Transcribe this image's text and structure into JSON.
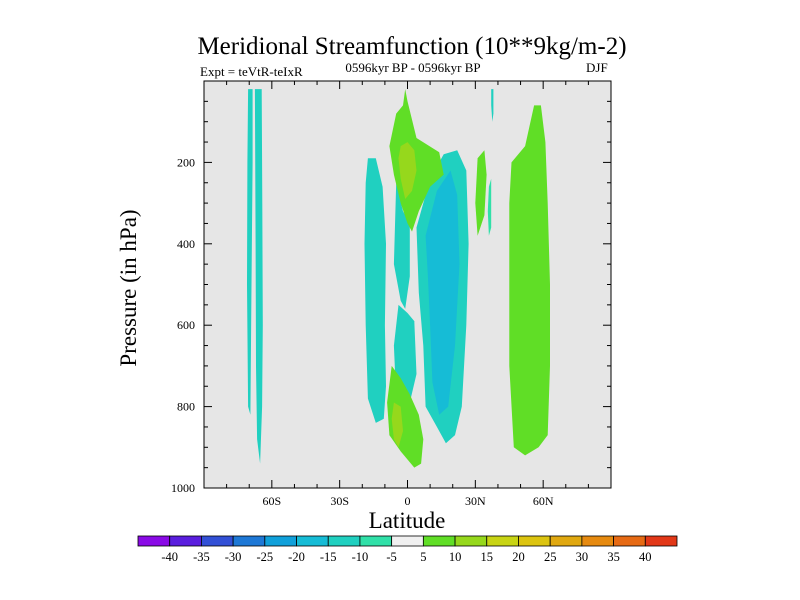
{
  "chart_data": {
    "type": "contour",
    "title": "Meridional Streamfunction (10**9kg/m-2)",
    "subtitle_left": "Expt = teVtR-teIxR",
    "subtitle_center": "0596kyr BP - 0596kyr BP",
    "subtitle_right": "DJF",
    "xlabel": "Latitude",
    "ylabel": "Pressure (in hPa)",
    "xlim": [
      -90,
      90
    ],
    "ylim": [
      1000,
      0
    ],
    "xticks": [
      {
        "value": -60,
        "label": "60S"
      },
      {
        "value": -30,
        "label": "30S"
      },
      {
        "value": 0,
        "label": "0"
      },
      {
        "value": 30,
        "label": "30N"
      },
      {
        "value": 60,
        "label": "60N"
      }
    ],
    "yticks": [
      {
        "value": 200,
        "label": "200"
      },
      {
        "value": 400,
        "label": "400"
      },
      {
        "value": 600,
        "label": "600"
      },
      {
        "value": 800,
        "label": "800"
      },
      {
        "value": 1000,
        "label": "1000"
      }
    ],
    "colorbar": {
      "labels": [
        "-40",
        "-35",
        "-30",
        "-25",
        "-20",
        "-15",
        "-10",
        "-5",
        "5",
        "10",
        "15",
        "20",
        "25",
        "30",
        "35",
        "40"
      ],
      "colors": [
        "#8a0ae6",
        "#5a1ede",
        "#3250d6",
        "#1e78d6",
        "#10a0da",
        "#16bcd6",
        "#20d0c0",
        "#30e0a8",
        "#f0f0f0",
        "#60de26",
        "#96d81c",
        "#c8d414",
        "#dcc410",
        "#e0a810",
        "#e68a10",
        "#e66a14",
        "#e23818"
      ]
    },
    "regions": [
      {
        "name": "sh-polar-cell-a",
        "level": "-10",
        "points": [
          [
            -70.5,
            20
          ],
          [
            -68.5,
            20
          ],
          [
            -68.5,
            200
          ],
          [
            -69,
            500
          ],
          [
            -69.5,
            820
          ],
          [
            -70.5,
            800
          ],
          [
            -71,
            500
          ],
          [
            -70.8,
            200
          ]
        ]
      },
      {
        "name": "sh-polar-cell-b",
        "level": "-10",
        "points": [
          [
            -67.5,
            20
          ],
          [
            -64.5,
            20
          ],
          [
            -64.2,
            300
          ],
          [
            -64,
            600
          ],
          [
            -64.3,
            800
          ],
          [
            -65.2,
            940
          ],
          [
            -66.5,
            880
          ],
          [
            -67,
            700
          ],
          [
            -67.2,
            400
          ]
        ]
      },
      {
        "name": "sh-ferrel-negative",
        "level": "-10",
        "points": [
          [
            -17.5,
            190
          ],
          [
            -14,
            190
          ],
          [
            -11,
            260
          ],
          [
            -9.5,
            400
          ],
          [
            -10,
            600
          ],
          [
            -9.5,
            750
          ],
          [
            -10.5,
            830
          ],
          [
            -14,
            840
          ],
          [
            -17.5,
            780
          ],
          [
            -18.5,
            600
          ],
          [
            -19,
            400
          ],
          [
            -18.5,
            250
          ]
        ]
      },
      {
        "name": "eq-negative-upper",
        "level": "-10",
        "points": [
          [
            -5,
            250
          ],
          [
            -2,
            320
          ],
          [
            1,
            350
          ],
          [
            1,
            480
          ],
          [
            -1,
            560
          ],
          [
            -3,
            540
          ],
          [
            -6,
            450
          ]
        ]
      },
      {
        "name": "eq-negative-lower",
        "level": "-10",
        "points": [
          [
            -4,
            550
          ],
          [
            0,
            570
          ],
          [
            3,
            590
          ],
          [
            4,
            720
          ],
          [
            1,
            790
          ],
          [
            -2,
            840
          ],
          [
            -5,
            780
          ],
          [
            -6,
            650
          ]
        ]
      },
      {
        "name": "nh-hadley-negative",
        "level": "-10",
        "points": [
          [
            4,
            360
          ],
          [
            10,
            240
          ],
          [
            16,
            180
          ],
          [
            22,
            170
          ],
          [
            26,
            220
          ],
          [
            27,
            400
          ],
          [
            26,
            600
          ],
          [
            24,
            800
          ],
          [
            21,
            870
          ],
          [
            17,
            890
          ],
          [
            13,
            850
          ],
          [
            8,
            800
          ],
          [
            7,
            650
          ],
          [
            5,
            520
          ]
        ]
      },
      {
        "name": "nh-hadley-core",
        "level": "-15",
        "points": [
          [
            8,
            380
          ],
          [
            13,
            270
          ],
          [
            19,
            220
          ],
          [
            22,
            280
          ],
          [
            23,
            450
          ],
          [
            21,
            650
          ],
          [
            18,
            800
          ],
          [
            14,
            820
          ],
          [
            11,
            740
          ],
          [
            10,
            600
          ],
          [
            9,
            480
          ]
        ]
      },
      {
        "name": "ferrel-positive-upper",
        "level": "5",
        "points": [
          [
            -1,
            20
          ],
          [
            0,
            50
          ],
          [
            4,
            140
          ],
          [
            14,
            175
          ],
          [
            16,
            230
          ],
          [
            10,
            260
          ],
          [
            5,
            320
          ],
          [
            2,
            370
          ],
          [
            0,
            350
          ],
          [
            -3,
            300
          ],
          [
            -6,
            230
          ],
          [
            -8,
            160
          ],
          [
            -5,
            80
          ],
          [
            -2,
            60
          ]
        ]
      },
      {
        "name": "ferrel-positive-upper-core",
        "level": "10",
        "points": [
          [
            -3,
            160
          ],
          [
            0,
            150
          ],
          [
            3,
            170
          ],
          [
            4,
            220
          ],
          [
            2,
            270
          ],
          [
            -1,
            290
          ],
          [
            -3,
            240
          ],
          [
            -4,
            190
          ]
        ]
      },
      {
        "name": "ferrel-positive-lower",
        "level": "5",
        "points": [
          [
            -7,
            700
          ],
          [
            -3,
            730
          ],
          [
            1,
            770
          ],
          [
            5,
            820
          ],
          [
            7,
            880
          ],
          [
            6,
            940
          ],
          [
            3,
            950
          ],
          [
            -3,
            910
          ],
          [
            -8,
            870
          ],
          [
            -9,
            790
          ]
        ]
      },
      {
        "name": "ferrel-positive-lower-core",
        "level": "10",
        "points": [
          [
            -6,
            790
          ],
          [
            -3,
            800
          ],
          [
            -2,
            860
          ],
          [
            -4,
            900
          ],
          [
            -6,
            880
          ],
          [
            -7,
            830
          ]
        ]
      },
      {
        "name": "nh-positive-small",
        "level": "5",
        "points": [
          [
            31,
            190
          ],
          [
            34,
            170
          ],
          [
            35,
            230
          ],
          [
            34,
            330
          ],
          [
            31,
            380
          ],
          [
            30,
            300
          ]
        ]
      },
      {
        "name": "nh-ferrel-positive",
        "level": "5",
        "points": [
          [
            46,
            200
          ],
          [
            52,
            160
          ],
          [
            56,
            60
          ],
          [
            59,
            60
          ],
          [
            61,
            150
          ],
          [
            62,
            300
          ],
          [
            63,
            500
          ],
          [
            63,
            700
          ],
          [
            62,
            870
          ],
          [
            58,
            900
          ],
          [
            52,
            920
          ],
          [
            47,
            900
          ],
          [
            45,
            700
          ],
          [
            45,
            450
          ],
          [
            45,
            300
          ]
        ]
      },
      {
        "name": "nh-polar-sliver",
        "level": "-10",
        "points": [
          [
            37,
            20
          ],
          [
            38,
            20
          ],
          [
            38,
            80
          ],
          [
            37.5,
            100
          ],
          [
            37,
            60
          ]
        ]
      },
      {
        "name": "nh-negative-sliver",
        "level": "-5",
        "points": [
          [
            36,
            260
          ],
          [
            37,
            240
          ],
          [
            37,
            360
          ],
          [
            36,
            380
          ],
          [
            35.5,
            320
          ]
        ]
      }
    ]
  }
}
